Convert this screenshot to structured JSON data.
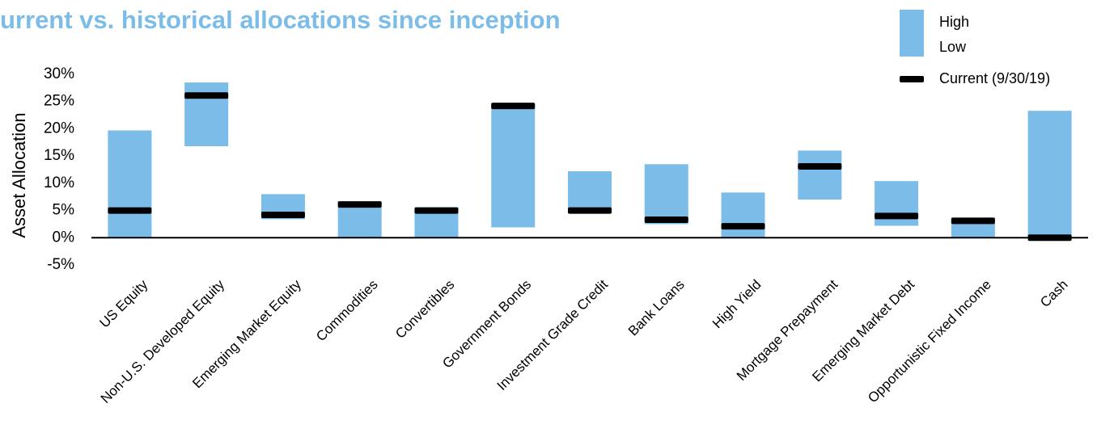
{
  "chart_data": {
    "type": "range",
    "title": "urrent vs. historical allocations since inception",
    "y_label": "Asset Allocation",
    "categories": [
      "US Equity",
      "Non-U.S. Developed Equity",
      "Emerging Market Equity",
      "Commodities",
      "Convertibles",
      "Government Bonds",
      "Investment Grade Credit",
      "Bank Loans",
      "High Yield",
      "Mortgage Prepayment",
      "Emerging Market Debt",
      "Opportunistic Fixed Income",
      "Cash"
    ],
    "series": [
      {
        "name": "High",
        "color": "#7bbde8",
        "values": [
          19.7,
          28.5,
          8.0,
          6.7,
          5.6,
          24.7,
          12.2,
          13.5,
          8.3,
          16.0,
          10.4,
          3.7,
          23.3
        ]
      },
      {
        "name": "Low",
        "color": "#7bbde8",
        "values": [
          0,
          16.8,
          3.4,
          0,
          0,
          1.9,
          4.5,
          2.5,
          0,
          7.0,
          2.2,
          0,
          0
        ]
      },
      {
        "name": "Current (9/30/19)",
        "color": "#000000",
        "values": [
          5.0,
          26.1,
          4.2,
          6.1,
          5.0,
          24.2,
          5.0,
          3.3,
          2.1,
          13.1,
          4.0,
          3.1,
          0.0
        ]
      }
    ],
    "ylim": [
      -5,
      30
    ],
    "yticks": [
      {
        "value": -5,
        "label": "-5%"
      },
      {
        "value": 0,
        "label": "0%"
      },
      {
        "value": 5,
        "label": "5%"
      },
      {
        "value": 10,
        "label": "10%"
      },
      {
        "value": 15,
        "label": "15%"
      },
      {
        "value": 20,
        "label": "20%"
      },
      {
        "value": 25,
        "label": "25%"
      },
      {
        "value": 30,
        "label": "30%"
      }
    ]
  }
}
